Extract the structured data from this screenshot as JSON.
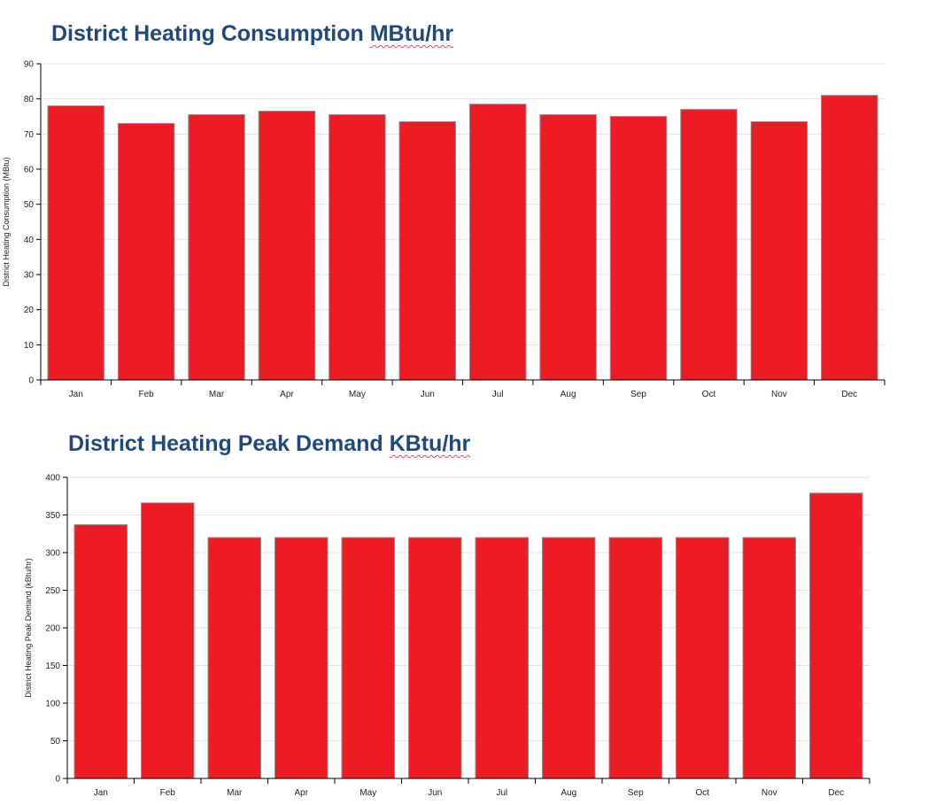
{
  "charts": [
    {
      "title_main": "District Heating Consumption ",
      "title_unit": "MBtu/hr"
    },
    {
      "title_main": "District Heating Peak Demand ",
      "title_unit": "KBtu/hr"
    }
  ],
  "chart_data": [
    {
      "type": "bar",
      "categories": [
        "Jan",
        "Feb",
        "Mar",
        "Apr",
        "May",
        "Jun",
        "Jul",
        "Aug",
        "Sep",
        "Oct",
        "Nov",
        "Dec"
      ],
      "values": [
        78,
        73,
        75.5,
        76.5,
        75.5,
        73.5,
        78.5,
        75.5,
        75,
        77,
        73.5,
        81
      ],
      "title": "District Heating Consumption MBtu/hr",
      "xlabel": "",
      "ylabel": "District Heating Consumption (MBtu)",
      "ylim": [
        0,
        90
      ],
      "yticks": [
        0,
        10,
        20,
        30,
        40,
        50,
        60,
        70,
        80,
        90
      ],
      "grid": true,
      "bar_color": "#ed1c24"
    },
    {
      "type": "bar",
      "categories": [
        "Jan",
        "Feb",
        "Mar",
        "Apr",
        "May",
        "Jun",
        "Jul",
        "Aug",
        "Sep",
        "Oct",
        "Nov",
        "Dec"
      ],
      "values": [
        337,
        366,
        320,
        320,
        320,
        320,
        320,
        320,
        320,
        320,
        320,
        379
      ],
      "title": "District Heating Peak Demand KBtu/hr",
      "xlabel": "",
      "ylabel": "District Heating Peak Demand (kBtu/hr)",
      "ylim": [
        0,
        400
      ],
      "yticks": [
        0,
        50,
        100,
        150,
        200,
        250,
        300,
        350,
        400
      ],
      "grid": true,
      "bar_color": "#ed1c24"
    }
  ]
}
